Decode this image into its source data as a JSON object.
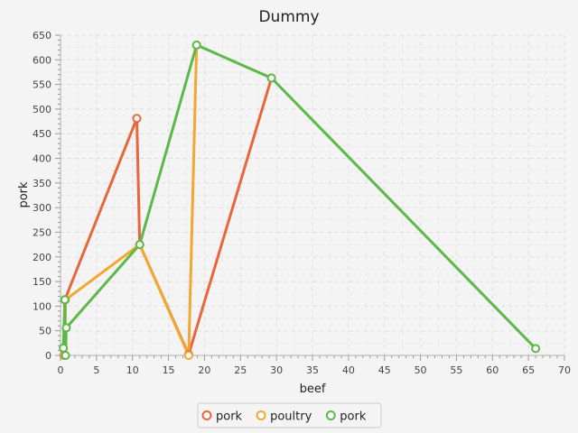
{
  "chart_data": {
    "type": "line",
    "title": "Dummy",
    "xlabel": "beef",
    "ylabel": "pork",
    "xlim": [
      0,
      70
    ],
    "ylim": [
      0,
      650
    ],
    "x_ticks": [
      0,
      5,
      10,
      15,
      20,
      25,
      30,
      35,
      40,
      45,
      50,
      55,
      60,
      65,
      70
    ],
    "y_ticks": [
      0,
      50,
      100,
      150,
      200,
      250,
      300,
      350,
      400,
      450,
      500,
      550,
      600,
      650
    ],
    "grid": true,
    "legend_position": "bottom-center",
    "series": [
      {
        "name": "pork",
        "color": "#e8663b",
        "points": [
          [
            0.5,
            0
          ],
          [
            0.6,
            113
          ],
          [
            10.6,
            481
          ],
          [
            11.0,
            225
          ],
          [
            17.8,
            2
          ],
          [
            29.3,
            563
          ]
        ]
      },
      {
        "name": "poultry",
        "color": "#f0a830",
        "points": [
          [
            0.6,
            0
          ],
          [
            0.7,
            113
          ],
          [
            11.0,
            225
          ],
          [
            17.8,
            0
          ],
          [
            18.9,
            630
          ]
        ]
      },
      {
        "name": "pork",
        "color": "#5db84c",
        "points": [
          [
            0.4,
            15
          ],
          [
            0.6,
            113
          ],
          [
            0.7,
            0
          ],
          [
            0.8,
            56
          ],
          [
            11.0,
            225
          ],
          [
            18.9,
            630
          ],
          [
            29.3,
            563
          ],
          [
            66.0,
            14
          ]
        ]
      }
    ]
  }
}
